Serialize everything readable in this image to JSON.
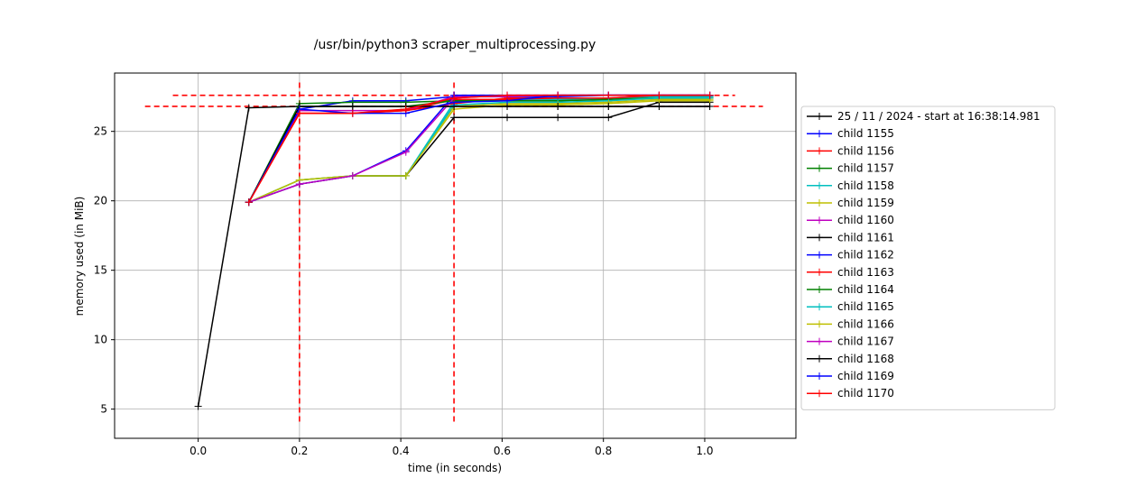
{
  "chart_data": {
    "type": "line",
    "title": "/usr/bin/python3 scraper_multiprocessing.py",
    "xlabel": "time (in seconds)",
    "ylabel": "memory used (in MiB)",
    "xlim": [
      -0.165,
      1.18
    ],
    "ylim": [
      2.9,
      29.2
    ],
    "xticks": [
      0.0,
      0.2,
      0.4,
      0.6,
      0.8,
      1.0
    ],
    "xtick_labels": [
      "0.0",
      "0.2",
      "0.4",
      "0.6",
      "0.8",
      "1.0"
    ],
    "yticks": [
      5,
      10,
      15,
      20,
      25
    ],
    "ytick_labels": [
      "5",
      "10",
      "15",
      "20",
      "25"
    ],
    "grid": true,
    "legend_position": "right",
    "colors": {
      "black": "#000000",
      "blue": "#0000ff",
      "red": "#ff0000",
      "green": "#008000",
      "cyan": "#00bfbf",
      "yellow": "#bfbf00",
      "magenta": "#bf00bf"
    },
    "series": [
      {
        "name": "25 / 11 / 2024 - start at 16:38:14.981",
        "color": "#000000",
        "x": [
          0.0,
          0.1,
          0.2,
          0.305,
          0.41,
          0.505,
          0.61,
          0.71,
          0.81,
          0.91,
          1.01
        ],
        "y": [
          5.2,
          26.7,
          26.8,
          26.8,
          26.8,
          26.8,
          26.8,
          26.8,
          26.8,
          26.8,
          26.8
        ]
      },
      {
        "name": "child 1155",
        "color": "#0000ff",
        "x": [
          0.1,
          0.2,
          0.305,
          0.41,
          0.505,
          0.61,
          0.71,
          0.81,
          0.91,
          1.01
        ],
        "y": [
          19.9,
          26.6,
          27.2,
          27.2,
          27.5,
          27.5,
          27.5,
          27.6,
          27.6,
          27.6
        ]
      },
      {
        "name": "child 1156",
        "color": "#ff0000",
        "x": [
          0.1,
          0.2,
          0.305,
          0.41,
          0.505,
          0.61,
          0.71,
          0.81,
          0.91,
          1.01
        ],
        "y": [
          19.9,
          26.3,
          26.3,
          26.5,
          27.3,
          27.3,
          27.3,
          27.4,
          27.6,
          27.6
        ]
      },
      {
        "name": "child 1157",
        "color": "#008000",
        "x": [
          0.1,
          0.2,
          0.305,
          0.41,
          0.505,
          0.61,
          0.71,
          0.81,
          0.91,
          1.01
        ],
        "y": [
          19.9,
          27.0,
          27.1,
          27.1,
          27.2,
          27.2,
          27.2,
          27.3,
          27.5,
          27.5
        ]
      },
      {
        "name": "child 1158",
        "color": "#00bfbf",
        "x": [
          0.1,
          0.2,
          0.305,
          0.41,
          0.505,
          0.61,
          0.71,
          0.81,
          0.91,
          1.01
        ],
        "y": [
          19.9,
          21.5,
          21.8,
          21.8,
          27.1,
          27.2,
          27.3,
          27.4,
          27.5,
          27.5
        ]
      },
      {
        "name": "child 1159",
        "color": "#bfbf00",
        "x": [
          0.1,
          0.2,
          0.305,
          0.41,
          0.505,
          0.61,
          0.71,
          0.81,
          0.91,
          1.01
        ],
        "y": [
          19.9,
          21.5,
          21.8,
          21.8,
          26.8,
          27.0,
          27.0,
          27.1,
          27.3,
          27.3
        ]
      },
      {
        "name": "child 1160",
        "color": "#bf00bf",
        "x": [
          0.1,
          0.2,
          0.305,
          0.41,
          0.505,
          0.61,
          0.71,
          0.81,
          0.91,
          1.01
        ],
        "y": [
          19.9,
          26.5,
          26.5,
          26.5,
          27.5,
          27.5,
          27.6,
          27.6,
          27.6,
          27.6
        ]
      },
      {
        "name": "child 1161",
        "color": "#000000",
        "x": [
          0.1,
          0.2,
          0.305,
          0.41,
          0.505,
          0.61,
          0.71,
          0.81,
          0.91,
          1.01
        ],
        "y": [
          19.9,
          21.2,
          21.8,
          21.8,
          26.0,
          26.0,
          26.0,
          26.0,
          27.1,
          27.1
        ]
      },
      {
        "name": "child 1162",
        "color": "#0000ff",
        "x": [
          0.1,
          0.2,
          0.305,
          0.41,
          0.505,
          0.61,
          0.71,
          0.81,
          0.91,
          1.01
        ],
        "y": [
          19.9,
          21.2,
          21.8,
          23.6,
          27.6,
          27.6,
          27.6,
          27.6,
          27.6,
          27.6
        ]
      },
      {
        "name": "child 1163",
        "color": "#ff0000",
        "x": [
          0.1,
          0.2,
          0.305,
          0.41,
          0.505,
          0.61,
          0.71,
          0.81,
          0.91,
          1.01
        ],
        "y": [
          19.9,
          26.3,
          26.3,
          26.5,
          27.0,
          27.4,
          27.4,
          27.4,
          27.6,
          27.6
        ]
      },
      {
        "name": "child 1164",
        "color": "#008000",
        "x": [
          0.1,
          0.2,
          0.305,
          0.41,
          0.505,
          0.61,
          0.71,
          0.81,
          0.91,
          1.01
        ],
        "y": [
          19.9,
          26.8,
          26.8,
          26.8,
          27.2,
          27.2,
          27.2,
          27.3,
          27.4,
          27.4
        ]
      },
      {
        "name": "child 1165",
        "color": "#00bfbf",
        "x": [
          0.1,
          0.2,
          0.305,
          0.41,
          0.505,
          0.61,
          0.71,
          0.81,
          0.91,
          1.01
        ],
        "y": [
          19.9,
          21.5,
          21.8,
          21.8,
          26.9,
          27.1,
          27.1,
          27.2,
          27.4,
          27.4
        ]
      },
      {
        "name": "child 1166",
        "color": "#bfbf00",
        "x": [
          0.1,
          0.2,
          0.305,
          0.41,
          0.505,
          0.61,
          0.71,
          0.81,
          0.91,
          1.01
        ],
        "y": [
          19.9,
          21.5,
          21.8,
          21.8,
          26.6,
          26.9,
          26.9,
          27.0,
          27.2,
          27.2
        ]
      },
      {
        "name": "child 1167",
        "color": "#bf00bf",
        "x": [
          0.1,
          0.2,
          0.305,
          0.41,
          0.505,
          0.61,
          0.71,
          0.81,
          0.91,
          1.01
        ],
        "y": [
          19.9,
          21.2,
          21.8,
          23.5,
          27.4,
          27.6,
          27.6,
          27.6,
          27.6,
          27.6
        ]
      },
      {
        "name": "child 1168",
        "color": "#000000",
        "x": [
          0.1,
          0.2,
          0.305,
          0.41,
          0.505,
          0.61,
          0.71,
          0.81,
          0.91,
          1.01
        ],
        "y": [
          19.9,
          26.8,
          26.8,
          26.8,
          26.8,
          26.8,
          26.8,
          26.8,
          26.8,
          26.8
        ]
      },
      {
        "name": "child 1169",
        "color": "#0000ff",
        "x": [
          0.1,
          0.2,
          0.305,
          0.41,
          0.505,
          0.61,
          0.71,
          0.81,
          0.91,
          1.01
        ],
        "y": [
          19.9,
          26.6,
          26.3,
          26.3,
          27.1,
          27.2,
          27.6,
          27.6,
          27.6,
          27.6
        ]
      },
      {
        "name": "child 1170",
        "color": "#ff0000",
        "x": [
          0.1,
          0.2,
          0.305,
          0.41,
          0.505,
          0.61,
          0.71,
          0.81,
          0.91,
          1.01
        ],
        "y": [
          19.9,
          26.3,
          26.3,
          26.6,
          27.4,
          27.6,
          27.6,
          27.6,
          27.6,
          27.6
        ]
      }
    ],
    "reference_lines": {
      "color": "#ff0000",
      "style": "dashed",
      "horizontal": [
        {
          "y": 27.6,
          "x_range": [
            -0.05,
            1.06
          ]
        },
        {
          "y": 26.8,
          "x_range": [
            -0.105,
            1.115
          ]
        }
      ],
      "vertical": [
        {
          "x": 0.2,
          "y_range": [
            4.1,
            28.7
          ]
        },
        {
          "x": 0.505,
          "y_range": [
            4.1,
            28.7
          ]
        }
      ]
    }
  }
}
